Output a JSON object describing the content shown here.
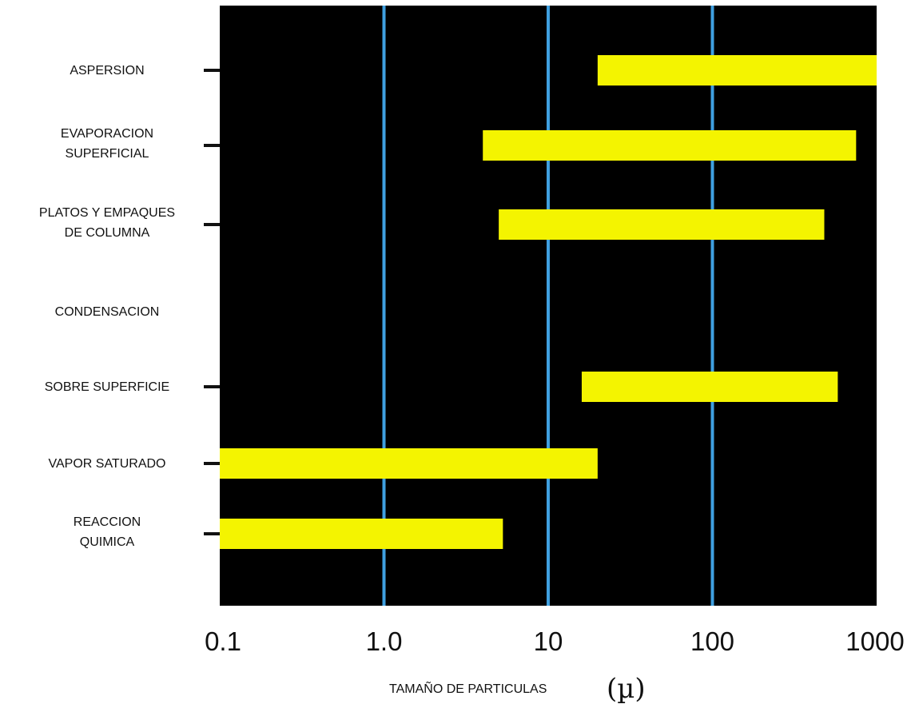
{
  "chart_data": {
    "type": "bar",
    "orientation": "horizontal",
    "x_scale": "log",
    "xlim": [
      0.1,
      1000
    ],
    "x_ticks": [
      "0.1",
      "1.0",
      "10",
      "100",
      "1000"
    ],
    "xlabel": "TAMAÑO DE PARTICULAS",
    "xlabel_unit": "(µ)",
    "grid": "vertical lines at 1, 10, 100",
    "colors": {
      "plot_background": "#000000",
      "bar": "#f4f400",
      "grid": "#3fa0e0"
    },
    "categories": [
      {
        "label_lines": [
          "ASPERSION"
        ],
        "range": [
          20,
          1000
        ]
      },
      {
        "label_lines": [
          "EVAPORACION",
          "SUPERFICIAL"
        ],
        "range": [
          4,
          750
        ]
      },
      {
        "label_lines": [
          "PLATOS Y EMPAQUES",
          "DE COLUMNA"
        ],
        "range": [
          5,
          480
        ]
      },
      {
        "label_lines": [
          "CONDENSACION"
        ],
        "range": null
      },
      {
        "label_lines": [
          "SOBRE SUPERFICIE"
        ],
        "range": [
          16,
          580
        ]
      },
      {
        "label_lines": [
          "VAPOR SATURADO"
        ],
        "range": [
          0.1,
          20
        ]
      },
      {
        "label_lines": [
          "REACCION",
          "QUIMICA"
        ],
        "range": [
          0.1,
          5.3
        ]
      }
    ]
  }
}
